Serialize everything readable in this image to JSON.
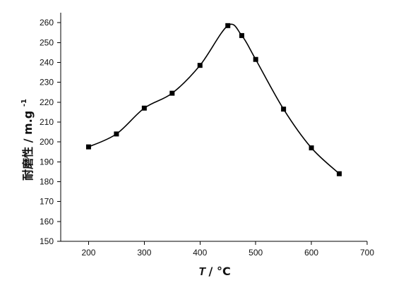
{
  "chart_data": {
    "type": "line",
    "title": "",
    "xlabel": {
      "symbol": "T",
      "suffix": " / °C"
    },
    "ylabel": {
      "main": "耐磨性 / m.g",
      "superscript": "-1"
    },
    "x": [
      200,
      250,
      300,
      350,
      400,
      450,
      475,
      500,
      550,
      600,
      650
    ],
    "y": [
      197.5,
      204,
      217,
      224.5,
      238.5,
      258.5,
      253.5,
      241.5,
      216.5,
      197,
      184
    ],
    "xlim": [
      150,
      700
    ],
    "ylim": [
      150,
      265
    ],
    "xticks": [
      200,
      300,
      400,
      500,
      600,
      700
    ],
    "xtick_labels": [
      "200",
      "300",
      "400",
      "500",
      "600",
      "700"
    ],
    "yticks": [
      150,
      160,
      170,
      180,
      190,
      200,
      210,
      220,
      230,
      240,
      250,
      260
    ],
    "ytick_labels": [
      "150",
      "160",
      "170",
      "180",
      "190",
      "200",
      "210",
      "220",
      "230",
      "240",
      "250",
      "260"
    ],
    "grid": false,
    "marker": "square",
    "line_style": "smooth",
    "color": "#000000"
  }
}
